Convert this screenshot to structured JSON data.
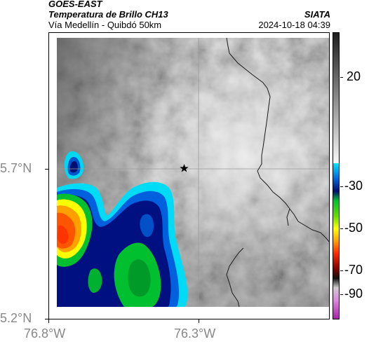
{
  "header": {
    "satellite": "GOES-EAST",
    "product": "Temperatura de Brillo CH13",
    "org": "SIATA",
    "route": "Vía Medellín - Quibdó 50km",
    "datetime": "2024-10-18 04:39"
  },
  "map": {
    "lon_ticks": [
      "76.8°W",
      "76.3°W"
    ],
    "lat_ticks": [
      "5.7°N",
      "5.2°N"
    ],
    "marker": "star-icon"
  },
  "colorbar": {
    "labels": [
      "20",
      "-30",
      "-50",
      "-70",
      "-90"
    ],
    "colors": {
      "warm_gray_top": "#2a2a2a",
      "warm_gray_bottom": "#f4f4f4",
      "cyan": "#00e5ff",
      "blue": "#0044cc",
      "navy": "#001070",
      "green": "#00c030",
      "yellow": "#ffff00",
      "orange": "#ff8800",
      "red": "#ff2a00",
      "dark_red": "#800000",
      "magenta": "#cc33cc"
    }
  }
}
